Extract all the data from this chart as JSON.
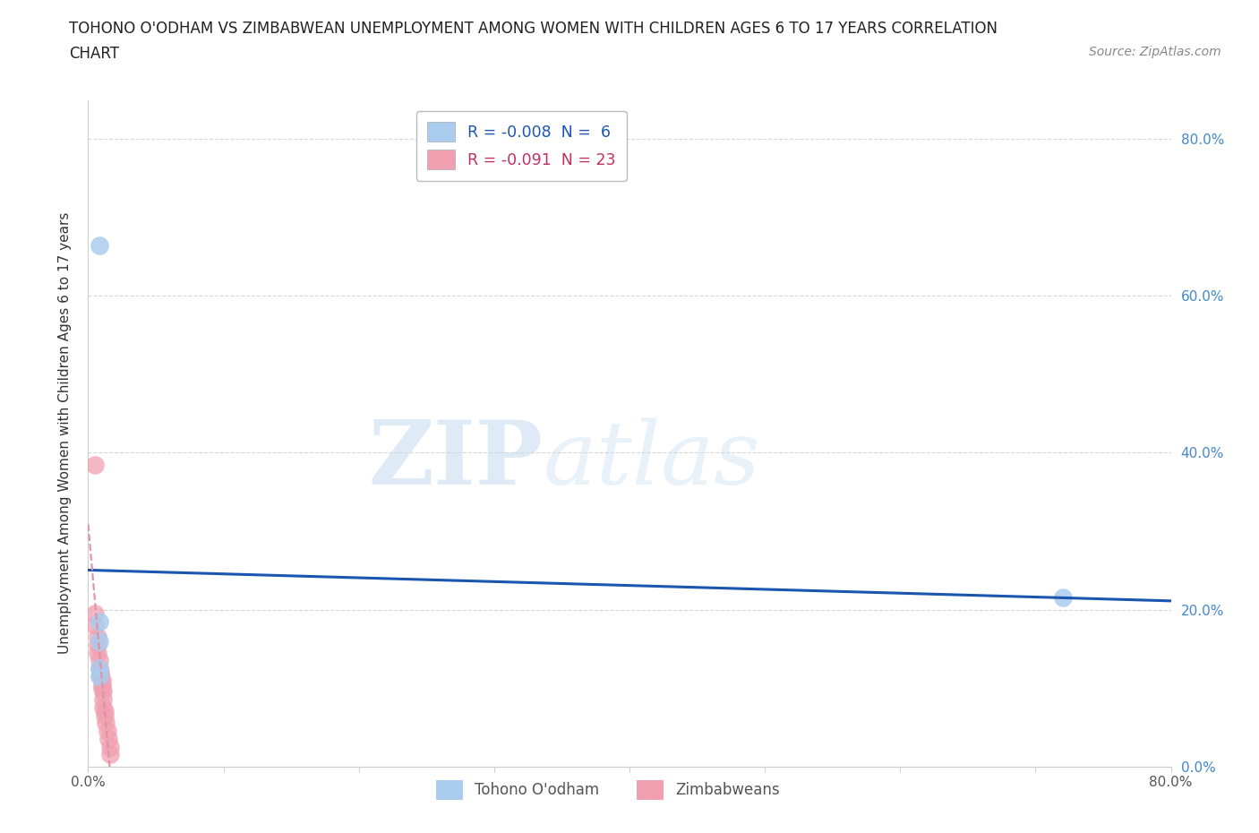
{
  "title_line1": "TOHONO O'ODHAM VS ZIMBABWEAN UNEMPLOYMENT AMONG WOMEN WITH CHILDREN AGES 6 TO 17 YEARS CORRELATION",
  "title_line2": "CHART",
  "source_text": "Source: ZipAtlas.com",
  "ylabel": "Unemployment Among Women with Children Ages 6 to 17 years",
  "xlim": [
    0.0,
    0.8
  ],
  "ylim": [
    0.0,
    0.85
  ],
  "xticks": [
    0.0,
    0.1,
    0.2,
    0.3,
    0.4,
    0.5,
    0.6,
    0.7,
    0.8
  ],
  "xticklabels": [
    "0.0%",
    "",
    "",
    "",
    "",
    "",
    "",
    "",
    "80.0%"
  ],
  "yticks": [
    0.0,
    0.2,
    0.4,
    0.6,
    0.8
  ],
  "yticklabels": [
    "0.0%",
    "20.0%",
    "40.0%",
    "60.0%",
    "80.0%"
  ],
  "watermark_zip": "ZIP",
  "watermark_atlas": "atlas",
  "legend_r1": "R = -0.008",
  "legend_n1": "N =  6",
  "legend_r2": "R = -0.091",
  "legend_n2": "N = 23",
  "legend_label1": "Tohono O'odham",
  "legend_label2": "Zimbabweans",
  "tohono_points": [
    [
      0.008,
      0.665
    ],
    [
      0.008,
      0.185
    ],
    [
      0.008,
      0.16
    ],
    [
      0.008,
      0.125
    ],
    [
      0.008,
      0.115
    ],
    [
      0.72,
      0.215
    ]
  ],
  "zimbabwean_points": [
    [
      0.005,
      0.385
    ],
    [
      0.005,
      0.195
    ],
    [
      0.005,
      0.18
    ],
    [
      0.007,
      0.165
    ],
    [
      0.007,
      0.155
    ],
    [
      0.007,
      0.145
    ],
    [
      0.008,
      0.135
    ],
    [
      0.008,
      0.125
    ],
    [
      0.009,
      0.12
    ],
    [
      0.009,
      0.115
    ],
    [
      0.01,
      0.11
    ],
    [
      0.01,
      0.105
    ],
    [
      0.01,
      0.1
    ],
    [
      0.011,
      0.095
    ],
    [
      0.011,
      0.085
    ],
    [
      0.011,
      0.075
    ],
    [
      0.012,
      0.07
    ],
    [
      0.012,
      0.065
    ],
    [
      0.013,
      0.055
    ],
    [
      0.014,
      0.045
    ],
    [
      0.015,
      0.035
    ],
    [
      0.016,
      0.025
    ],
    [
      0.016,
      0.015
    ]
  ],
  "tohono_color": "#aaccee",
  "zimbabwean_color": "#f0a0b0",
  "tohono_trend_color": "#1a56b0",
  "zimbabwean_trend_color": "#e090a0",
  "right_axis_color": "#4488cc",
  "grid_color": "#cccccc",
  "background_color": "#ffffff"
}
